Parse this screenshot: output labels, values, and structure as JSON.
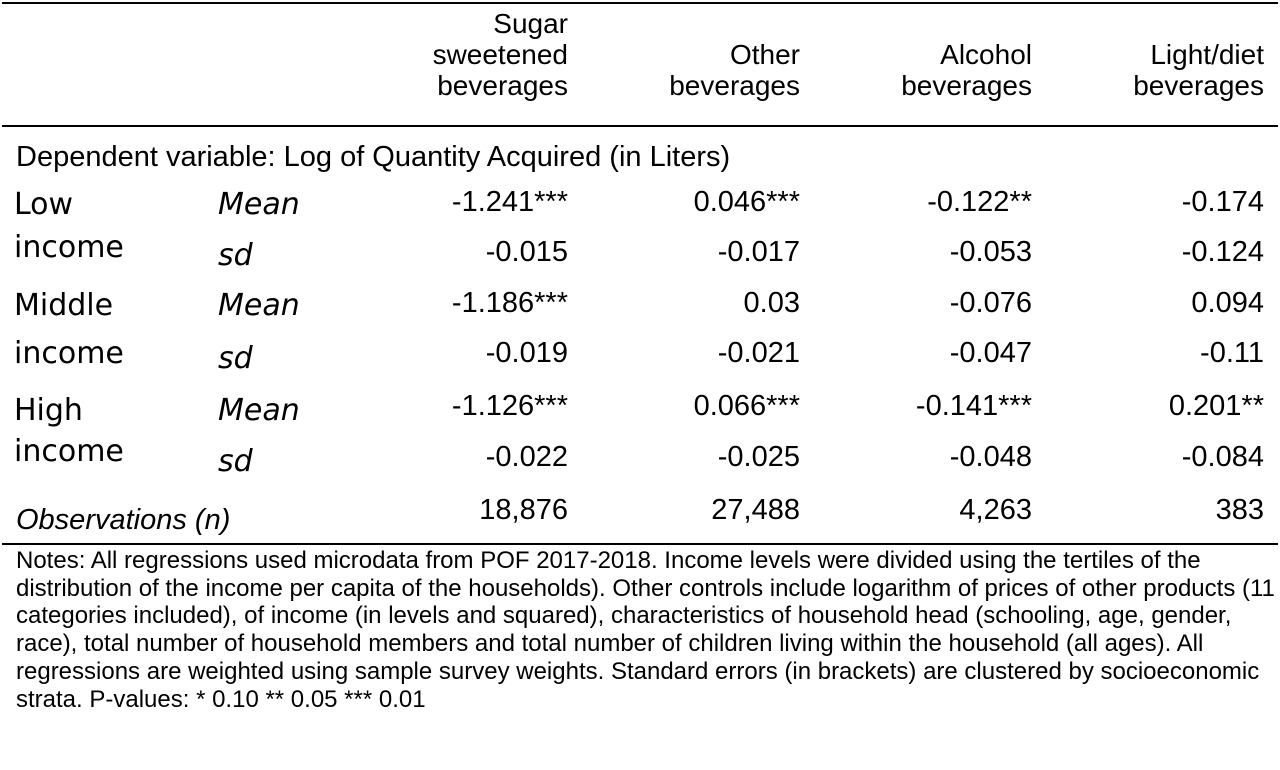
{
  "headers": {
    "col1": "Sugar\nsweetened\nbeverages",
    "col2": "Other\nbeverages",
    "col3": "Alcohol\nbeverages",
    "col4": "Light/diet\nbeverages"
  },
  "dependent_variable": "Dependent variable: Log of Quantity Acquired (in Liters)",
  "groups": [
    {
      "line1": "Low",
      "line2": "income",
      "mean_label": "Mean",
      "sd_label": "sd",
      "mean": [
        "-1.241***",
        "0.046***",
        "-0.122**",
        "-0.174"
      ],
      "sd": [
        "-0.015",
        "-0.017",
        "-0.053",
        "-0.124"
      ]
    },
    {
      "line1": "Middle",
      "line2": "income",
      "mean_label": "Mean",
      "sd_label": "sd",
      "mean": [
        "-1.186***",
        "0.03",
        "-0.076",
        "0.094"
      ],
      "sd": [
        "-0.019",
        "-0.021",
        "-0.047",
        "-0.11"
      ]
    },
    {
      "line1": "High",
      "line2": "income",
      "mean_label": "Mean",
      "sd_label": "sd",
      "mean": [
        "-1.126***",
        "0.066***",
        "-0.141***",
        "0.201**"
      ],
      "sd": [
        "-0.022",
        "-0.025",
        "-0.048",
        "-0.084"
      ]
    }
  ],
  "observations": {
    "label": "Observations (n)",
    "values": [
      "18,876",
      "27,488",
      "4,263",
      "383"
    ]
  },
  "notes": "Notes: All regressions used microdata from POF 2017-2018. Income levels were divided using the tertiles of the distribution of the income per capita of the households). Other controls include logarithm of prices of other products (11 categories included), of income (in levels and squared), characteristics of household head (schooling, age, gender, race), total number of household members and total number of children living within the household (all ages). All regressions are weighted using sample survey weights. Standard errors (in brackets) are clustered by socioeconomic strata. P-values: * 0.10 ** 0.05 *** 0.01"
}
